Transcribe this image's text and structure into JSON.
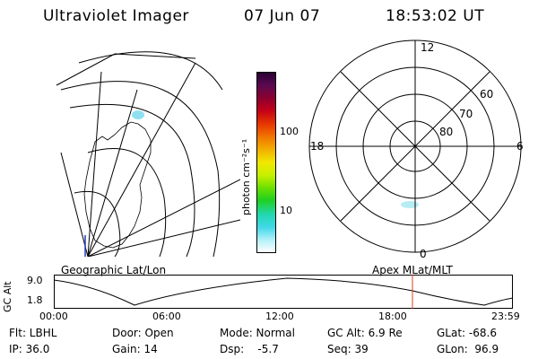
{
  "header": {
    "title": "Ultraviolet Imager",
    "date": "07 Jun 07",
    "time": "18:53:02 UT"
  },
  "left_panel": {
    "caption": "Geographic Lat/Lon"
  },
  "colorbar": {
    "label": "photon cm⁻²s⁻¹",
    "ticks": [
      "100",
      "10"
    ],
    "colors": [
      "#2a0033",
      "#5a0a50",
      "#8a0030",
      "#c40018",
      "#e83a00",
      "#f07800",
      "#f2b000",
      "#f0e800",
      "#c8f000",
      "#6ee000",
      "#20d020",
      "#22d8b0",
      "#40d8e8",
      "#b0f0f8",
      "#ffffff"
    ]
  },
  "right_panel": {
    "caption": "Apex MLat/MLT",
    "mlt_labels": {
      "top": "12",
      "left": "18",
      "right": "6",
      "bottom": "0"
    },
    "lat_labels": [
      "60",
      "70",
      "80"
    ]
  },
  "gc_alt_plot": {
    "ylabel": "GC Alt",
    "yticks": [
      "9.0",
      "1.8"
    ],
    "xticks": [
      "00:00",
      "06:00",
      "12:00",
      "18:00",
      "23:59"
    ]
  },
  "footer": {
    "rows": [
      [
        "Flt: LBHL",
        "Door: Open",
        "Mode: Normal",
        "GC Alt: 6.9 Re",
        "GLat: -68.6"
      ],
      [
        "IP: 36.0",
        "Gain: 14",
        "Dsp:    -5.7",
        "Seq: 39",
        "GLon:  96.9"
      ]
    ]
  },
  "colors": {
    "marker": "#d84020",
    "aurora": "#8ee0f0"
  }
}
